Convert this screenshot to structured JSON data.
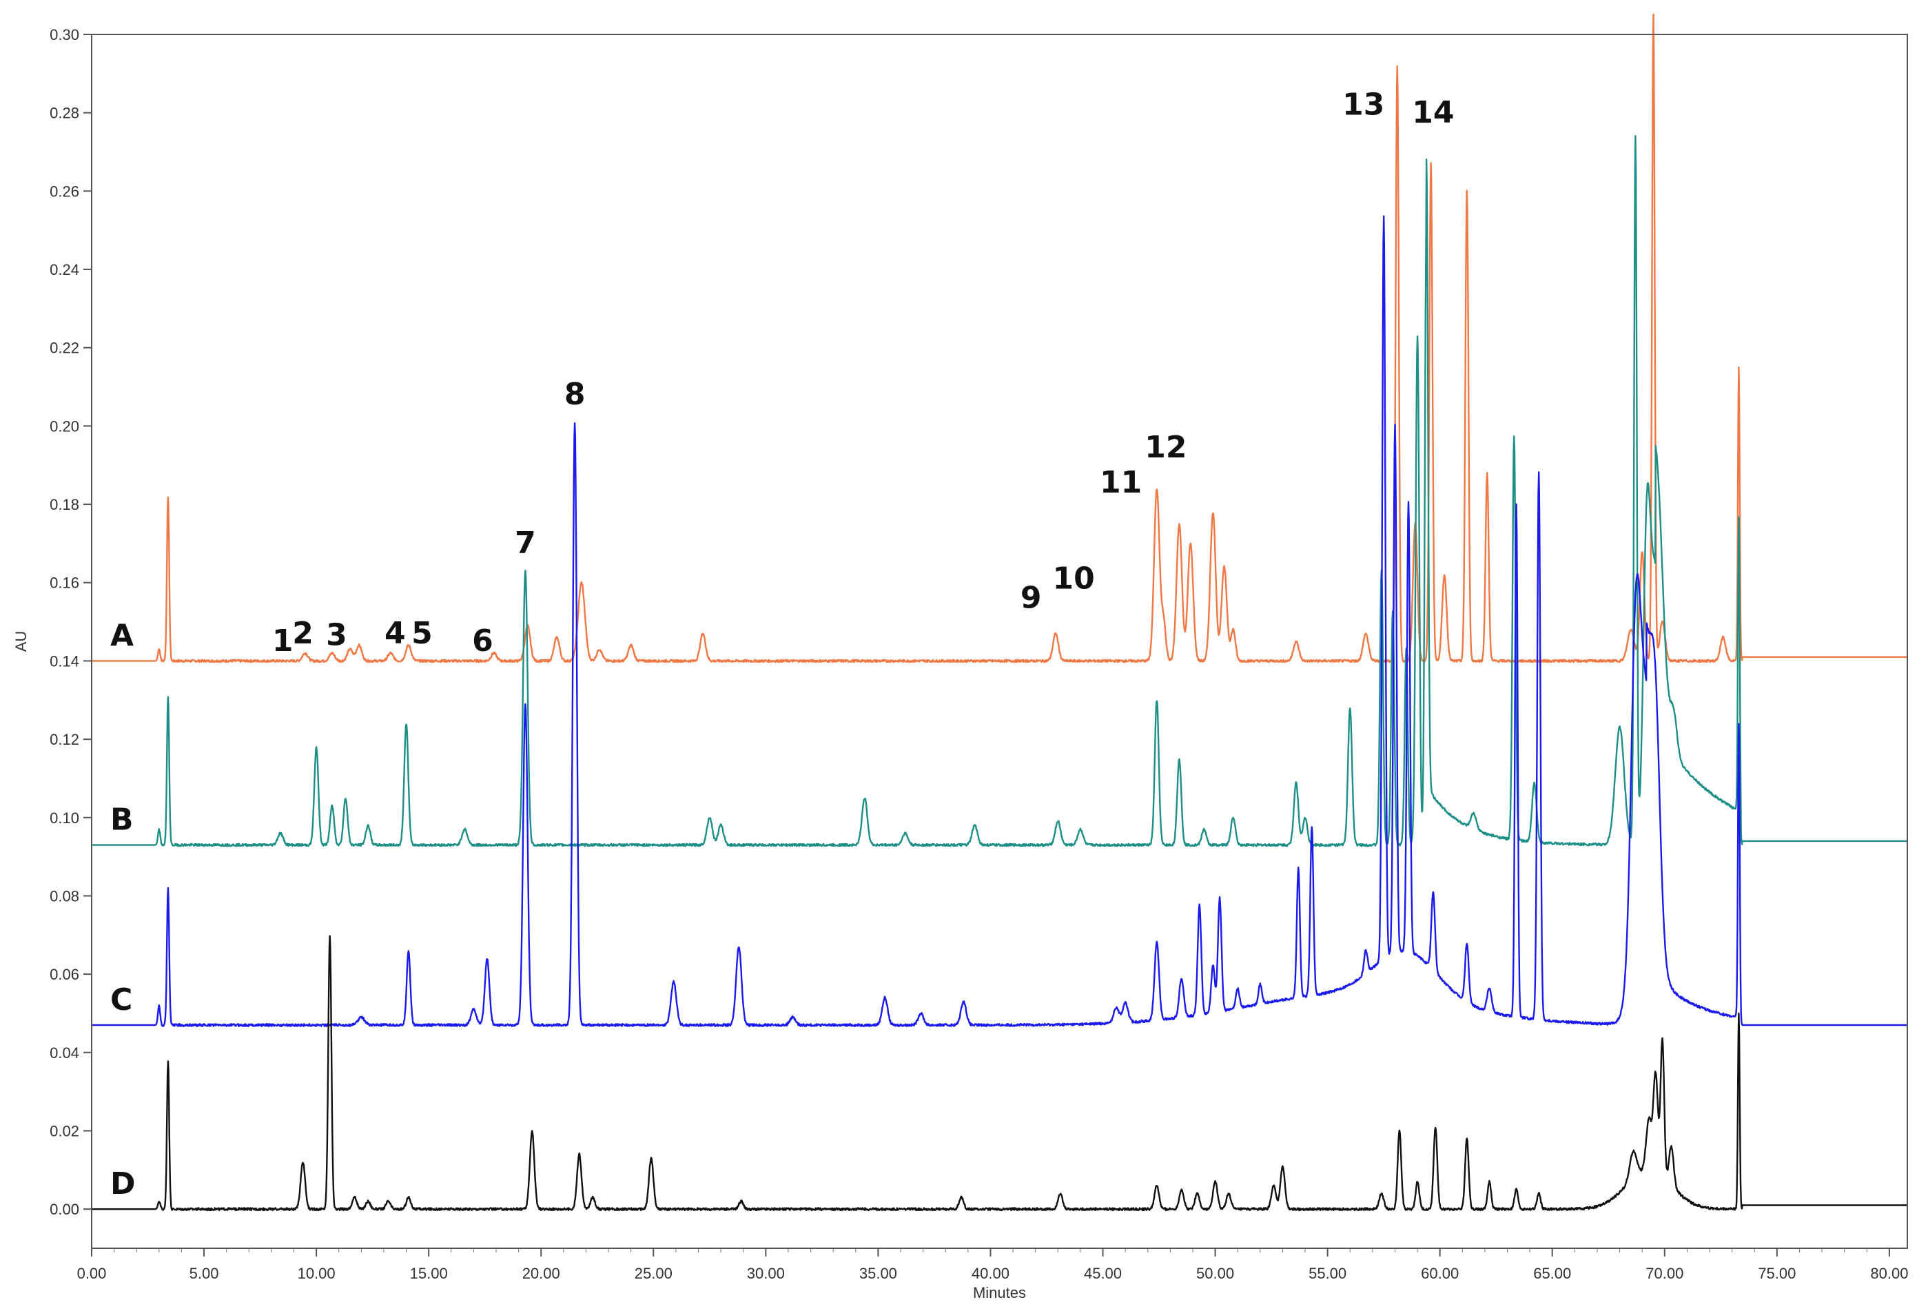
{
  "chart_data": {
    "type": "line",
    "title": "",
    "xlabel": "Minutes",
    "ylabel": "AU",
    "xlim": [
      0.0,
      80.8
    ],
    "ylim": [
      -0.01,
      0.3
    ],
    "x_ticks": [
      "0.00",
      "5.00",
      "10.00",
      "15.00",
      "20.00",
      "25.00",
      "30.00",
      "35.00",
      "40.00",
      "45.00",
      "50.00",
      "55.00",
      "60.00",
      "65.00",
      "70.00",
      "75.00",
      "80.00"
    ],
    "y_ticks": [
      "0.00",
      "0.02",
      "0.04",
      "0.06",
      "0.08",
      "0.10",
      "0.12",
      "0.14",
      "0.16",
      "0.18",
      "0.20",
      "0.22",
      "0.24",
      "0.26",
      "0.28",
      "0.30"
    ],
    "grid": false,
    "series": [
      {
        "name": "A",
        "color": "#f07845",
        "baseline": 0.14,
        "end_value": 0.141,
        "peaks": [
          [
            3.0,
            0.003,
            0.05
          ],
          [
            3.4,
            0.042,
            0.05
          ],
          [
            9.5,
            0.002,
            0.12
          ],
          [
            10.7,
            0.002,
            0.12
          ],
          [
            11.5,
            0.003,
            0.12
          ],
          [
            11.9,
            0.004,
            0.12
          ],
          [
            13.3,
            0.002,
            0.12
          ],
          [
            14.1,
            0.004,
            0.12
          ],
          [
            17.9,
            0.002,
            0.12
          ],
          [
            19.4,
            0.009,
            0.12
          ],
          [
            20.7,
            0.006,
            0.12
          ],
          [
            21.8,
            0.02,
            0.15
          ],
          [
            22.6,
            0.003,
            0.12
          ],
          [
            24.0,
            0.004,
            0.12
          ],
          [
            27.2,
            0.007,
            0.12
          ],
          [
            42.9,
            0.007,
            0.12
          ],
          [
            47.4,
            0.044,
            0.12
          ],
          [
            47.7,
            0.01,
            0.1
          ],
          [
            48.4,
            0.035,
            0.12
          ],
          [
            48.9,
            0.03,
            0.12
          ],
          [
            49.9,
            0.038,
            0.12
          ],
          [
            50.4,
            0.024,
            0.12
          ],
          [
            50.8,
            0.008,
            0.1
          ],
          [
            53.6,
            0.005,
            0.12
          ],
          [
            56.7,
            0.007,
            0.12
          ],
          [
            58.1,
            0.152,
            0.07
          ],
          [
            58.9,
            0.035,
            0.1
          ],
          [
            59.6,
            0.127,
            0.07
          ],
          [
            60.2,
            0.022,
            0.1
          ],
          [
            61.2,
            0.12,
            0.07
          ],
          [
            62.1,
            0.048,
            0.07
          ],
          [
            68.5,
            0.008,
            0.15
          ],
          [
            69.0,
            0.028,
            0.1
          ],
          [
            69.5,
            0.165,
            0.06
          ],
          [
            69.9,
            0.01,
            0.12
          ],
          [
            72.6,
            0.006,
            0.12
          ],
          [
            73.3,
            0.075,
            0.04
          ]
        ]
      },
      {
        "name": "B",
        "color": "#1e8f86",
        "baseline": 0.093,
        "end_value": 0.094,
        "peaks": [
          [
            3.0,
            0.004,
            0.05
          ],
          [
            3.4,
            0.038,
            0.05
          ],
          [
            8.4,
            0.003,
            0.12
          ],
          [
            10.0,
            0.025,
            0.09
          ],
          [
            10.7,
            0.01,
            0.09
          ],
          [
            11.3,
            0.012,
            0.09
          ],
          [
            12.3,
            0.005,
            0.1
          ],
          [
            14.0,
            0.031,
            0.09
          ],
          [
            16.6,
            0.004,
            0.12
          ],
          [
            19.3,
            0.07,
            0.1
          ],
          [
            27.5,
            0.007,
            0.12
          ],
          [
            28.0,
            0.005,
            0.12
          ],
          [
            34.4,
            0.012,
            0.12
          ],
          [
            36.2,
            0.003,
            0.12
          ],
          [
            39.3,
            0.005,
            0.12
          ],
          [
            43.0,
            0.006,
            0.12
          ],
          [
            44.0,
            0.004,
            0.12
          ],
          [
            47.4,
            0.037,
            0.09
          ],
          [
            48.4,
            0.022,
            0.09
          ],
          [
            49.5,
            0.004,
            0.1
          ],
          [
            50.8,
            0.007,
            0.1
          ],
          [
            53.6,
            0.016,
            0.1
          ],
          [
            54.0,
            0.007,
            0.1
          ],
          [
            56.0,
            0.035,
            0.09
          ],
          [
            57.4,
            0.07,
            0.07
          ],
          [
            57.9,
            0.06,
            0.07
          ],
          [
            58.5,
            0.05,
            0.07
          ],
          [
            59.0,
            0.13,
            0.08
          ],
          [
            59.4,
            0.16,
            0.07
          ],
          [
            61.5,
            0.004,
            0.12
          ],
          [
            63.3,
            0.103,
            0.07
          ],
          [
            64.2,
            0.015,
            0.1
          ],
          [
            68.0,
            0.03,
            0.2
          ],
          [
            68.7,
            0.18,
            0.06
          ],
          [
            69.2,
            0.06,
            0.15
          ],
          [
            69.6,
            0.07,
            0.3
          ],
          [
            70.4,
            0.01,
            0.15
          ],
          [
            73.3,
            0.075,
            0.04
          ]
        ],
        "tails": [
          [
            59.4,
            0.015,
            1.6
          ],
          [
            69.6,
            0.03,
            3.0
          ]
        ]
      },
      {
        "name": "C",
        "color": "#1a1aee",
        "baseline": 0.047,
        "end_value": 0.047,
        "peaks": [
          [
            3.0,
            0.005,
            0.05
          ],
          [
            3.4,
            0.035,
            0.05
          ],
          [
            12.0,
            0.002,
            0.15
          ],
          [
            14.1,
            0.019,
            0.08
          ],
          [
            17.0,
            0.004,
            0.12
          ],
          [
            17.6,
            0.017,
            0.1
          ],
          [
            19.3,
            0.082,
            0.1
          ],
          [
            21.5,
            0.154,
            0.09
          ],
          [
            25.9,
            0.011,
            0.12
          ],
          [
            28.8,
            0.02,
            0.12
          ],
          [
            31.2,
            0.002,
            0.12
          ],
          [
            35.3,
            0.007,
            0.12
          ],
          [
            36.9,
            0.003,
            0.12
          ],
          [
            38.8,
            0.006,
            0.12
          ],
          [
            45.6,
            0.004,
            0.12
          ],
          [
            46.0,
            0.005,
            0.12
          ],
          [
            47.4,
            0.02,
            0.1
          ],
          [
            48.5,
            0.01,
            0.1
          ],
          [
            49.3,
            0.028,
            0.08
          ],
          [
            49.9,
            0.012,
            0.08
          ],
          [
            50.2,
            0.029,
            0.08
          ],
          [
            51.0,
            0.005,
            0.08
          ],
          [
            52.0,
            0.005,
            0.08
          ],
          [
            53.7,
            0.033,
            0.07
          ],
          [
            54.3,
            0.043,
            0.07
          ],
          [
            56.7,
            0.006,
            0.08
          ],
          [
            57.5,
            0.19,
            0.07
          ],
          [
            58.0,
            0.135,
            0.07
          ],
          [
            58.6,
            0.115,
            0.07
          ],
          [
            59.7,
            0.02,
            0.08
          ],
          [
            61.2,
            0.015,
            0.08
          ],
          [
            62.2,
            0.006,
            0.1
          ],
          [
            63.4,
            0.131,
            0.06
          ],
          [
            64.4,
            0.14,
            0.07
          ],
          [
            68.7,
            0.06,
            0.2
          ],
          [
            69.1,
            0.082,
            0.4
          ],
          [
            69.6,
            0.04,
            0.2
          ],
          [
            73.3,
            0.075,
            0.04
          ]
        ],
        "humps": [
          [
            56.0,
            0.008,
            4.5
          ],
          [
            58.5,
            0.012,
            1.4
          ]
        ],
        "tails": [
          [
            69.2,
            0.015,
            2.0
          ]
        ]
      },
      {
        "name": "D",
        "color": "#111111",
        "baseline": 0.0,
        "end_value": 0.001,
        "peaks": [
          [
            3.0,
            0.002,
            0.05
          ],
          [
            3.4,
            0.038,
            0.05
          ],
          [
            9.4,
            0.012,
            0.1
          ],
          [
            10.6,
            0.07,
            0.07
          ],
          [
            11.7,
            0.003,
            0.1
          ],
          [
            12.3,
            0.002,
            0.1
          ],
          [
            13.2,
            0.002,
            0.1
          ],
          [
            14.1,
            0.003,
            0.1
          ],
          [
            19.6,
            0.02,
            0.1
          ],
          [
            21.7,
            0.014,
            0.1
          ],
          [
            22.3,
            0.003,
            0.1
          ],
          [
            24.9,
            0.013,
            0.1
          ],
          [
            28.9,
            0.002,
            0.1
          ],
          [
            38.7,
            0.003,
            0.1
          ],
          [
            43.1,
            0.004,
            0.1
          ],
          [
            47.4,
            0.006,
            0.1
          ],
          [
            48.5,
            0.005,
            0.1
          ],
          [
            49.2,
            0.004,
            0.1
          ],
          [
            50.0,
            0.007,
            0.1
          ],
          [
            50.6,
            0.004,
            0.1
          ],
          [
            52.6,
            0.006,
            0.1
          ],
          [
            53.0,
            0.011,
            0.1
          ],
          [
            57.4,
            0.004,
            0.1
          ],
          [
            58.2,
            0.02,
            0.08
          ],
          [
            59.0,
            0.007,
            0.08
          ],
          [
            59.8,
            0.021,
            0.08
          ],
          [
            61.2,
            0.018,
            0.08
          ],
          [
            62.2,
            0.007,
            0.08
          ],
          [
            63.4,
            0.005,
            0.08
          ],
          [
            64.4,
            0.004,
            0.08
          ],
          [
            68.6,
            0.007,
            0.15
          ],
          [
            69.3,
            0.013,
            0.12
          ],
          [
            69.6,
            0.025,
            0.1
          ],
          [
            69.9,
            0.035,
            0.08
          ],
          [
            70.3,
            0.01,
            0.1
          ],
          [
            73.3,
            0.05,
            0.04
          ]
        ],
        "humps": [
          [
            69.3,
            0.01,
            1.0
          ]
        ]
      }
    ],
    "annotations": [
      {
        "text": "1",
        "x": 8.5,
        "y": 0.1425
      },
      {
        "text": "2",
        "x": 9.4,
        "y": 0.1445
      },
      {
        "text": "3",
        "x": 10.9,
        "y": 0.144
      },
      {
        "text": "4",
        "x": 13.5,
        "y": 0.1445
      },
      {
        "text": "5",
        "x": 14.7,
        "y": 0.1445
      },
      {
        "text": "6",
        "x": 17.4,
        "y": 0.1425
      },
      {
        "text": "7",
        "x": 19.3,
        "y": 0.1675
      },
      {
        "text": "8",
        "x": 21.5,
        "y": 0.2055
      },
      {
        "text": "9",
        "x": 41.8,
        "y": 0.1535
      },
      {
        "text": "10",
        "x": 43.7,
        "y": 0.1585
      },
      {
        "text": "11",
        "x": 45.8,
        "y": 0.183
      },
      {
        "text": "12",
        "x": 47.8,
        "y": 0.192
      },
      {
        "text": "13",
        "x": 56.6,
        "y": 0.2795
      },
      {
        "text": "14",
        "x": 59.7,
        "y": 0.2775
      }
    ]
  }
}
